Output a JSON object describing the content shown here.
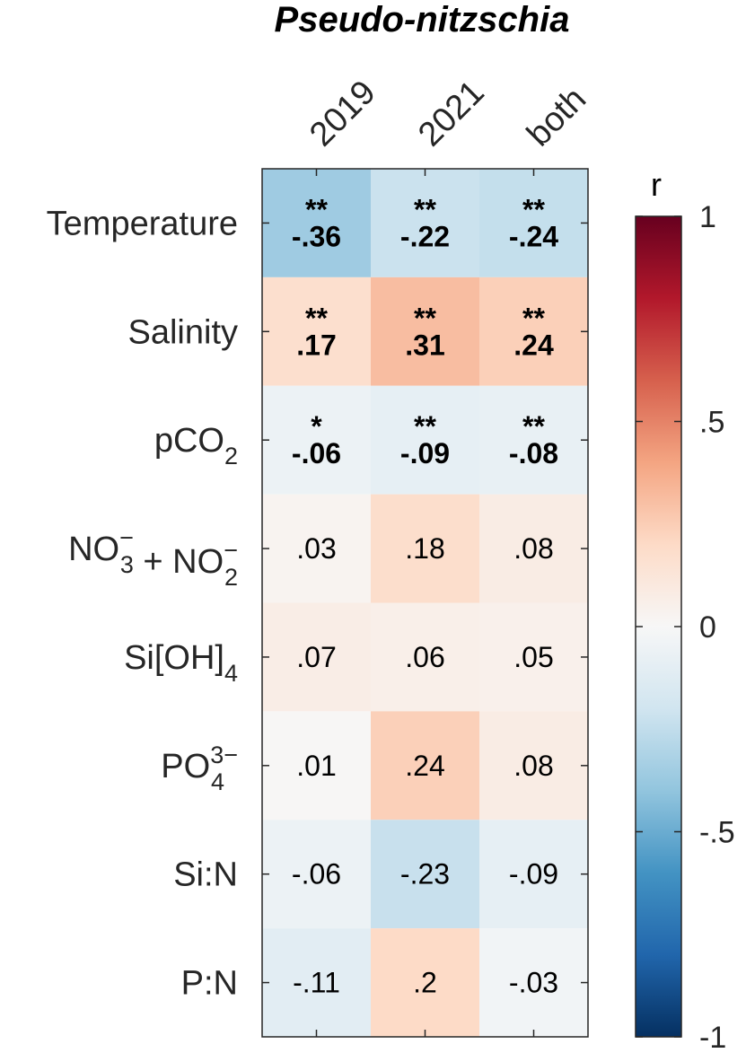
{
  "chart_data": {
    "type": "heatmap",
    "title": "Pseudo-nitzschia",
    "columns": [
      "2019",
      "2021",
      "both"
    ],
    "rows": [
      {
        "label": "Temperature",
        "sub": "",
        "sup": ""
      },
      {
        "label": "Salinity",
        "sub": "",
        "sup": ""
      },
      {
        "label": "pCO",
        "sub": "2",
        "sup": ""
      },
      {
        "label": "NO",
        "sub": "3",
        "sup": "−",
        "label2": " + NO",
        "sub2": "2",
        "sup2": "−"
      },
      {
        "label": "Si[OH]",
        "sub": "4",
        "sup": ""
      },
      {
        "label": "PO",
        "sub": "4",
        "sup": "3−"
      },
      {
        "label": "Si:N",
        "sub": "",
        "sup": ""
      },
      {
        "label": "P:N",
        "sub": "",
        "sup": ""
      }
    ],
    "values": [
      [
        -0.36,
        -0.22,
        -0.24
      ],
      [
        0.17,
        0.31,
        0.24
      ],
      [
        -0.06,
        -0.09,
        -0.08
      ],
      [
        0.03,
        0.18,
        0.08
      ],
      [
        0.07,
        0.06,
        0.05
      ],
      [
        0.01,
        0.24,
        0.08
      ],
      [
        -0.06,
        -0.23,
        -0.09
      ],
      [
        -0.11,
        0.2,
        -0.03
      ]
    ],
    "value_labels": [
      [
        "-.36",
        "-.22",
        "-.24"
      ],
      [
        ".17",
        ".31",
        ".24"
      ],
      [
        "-.06",
        "-.09",
        "-.08"
      ],
      [
        ".03",
        ".18",
        ".08"
      ],
      [
        ".07",
        ".06",
        ".05"
      ],
      [
        ".01",
        ".24",
        ".08"
      ],
      [
        "-.06",
        "-.23",
        "-.09"
      ],
      [
        "-.11",
        ".2",
        "-.03"
      ]
    ],
    "significance": [
      [
        "**",
        "**",
        "**"
      ],
      [
        "**",
        "**",
        "**"
      ],
      [
        "*",
        "**",
        "**"
      ],
      [
        "",
        "",
        ""
      ],
      [
        "",
        "",
        ""
      ],
      [
        "",
        "",
        ""
      ],
      [
        "",
        "",
        ""
      ],
      [
        "",
        "",
        ""
      ]
    ],
    "colorbar": {
      "label": "r",
      "range": [
        -1,
        1
      ],
      "ticks": [
        1,
        0.5,
        0,
        -0.5,
        -1
      ],
      "tick_labels": [
        "1",
        ".5",
        "0",
        "-.5",
        "-1"
      ],
      "colormap": "blue-white-red diverging"
    }
  }
}
